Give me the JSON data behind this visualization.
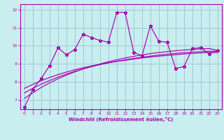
{
  "title": "",
  "xlabel": "Windchill (Refroidissement éolien,°C)",
  "background_color": "#c8eef0",
  "plot_bg_color": "#c8eef0",
  "grid_color": "#a0c8d8",
  "line_color": "#aa00aa",
  "xlim": [
    -0.5,
    23.5
  ],
  "ylim": [
    6.5,
    12.3
  ],
  "xticks": [
    0,
    1,
    2,
    3,
    4,
    5,
    6,
    7,
    8,
    9,
    10,
    11,
    12,
    13,
    14,
    15,
    16,
    17,
    18,
    19,
    20,
    21,
    22,
    23
  ],
  "yticks": [
    7,
    8,
    9,
    10,
    11,
    12
  ],
  "x_data": [
    0,
    1,
    2,
    3,
    4,
    5,
    6,
    7,
    8,
    9,
    10,
    11,
    12,
    13,
    14,
    15,
    16,
    17,
    18,
    19,
    20,
    21,
    22,
    23
  ],
  "y_main": [
    6.6,
    7.6,
    8.2,
    8.9,
    9.9,
    9.5,
    9.8,
    10.65,
    10.45,
    10.3,
    10.2,
    11.85,
    11.85,
    9.65,
    9.45,
    11.1,
    10.25,
    10.2,
    8.75,
    8.85,
    9.85,
    9.9,
    9.55,
    9.75
  ],
  "y_smooth1": [
    7.1,
    7.4,
    7.7,
    7.95,
    8.18,
    8.38,
    8.56,
    8.72,
    8.87,
    9.0,
    9.12,
    9.23,
    9.33,
    9.42,
    9.5,
    9.57,
    9.63,
    9.68,
    9.73,
    9.77,
    9.8,
    9.83,
    9.85,
    9.75
  ],
  "y_smooth2": [
    7.4,
    7.65,
    7.88,
    8.08,
    8.27,
    8.44,
    8.59,
    8.73,
    8.85,
    8.96,
    9.06,
    9.15,
    9.23,
    9.3,
    9.37,
    9.43,
    9.49,
    9.54,
    9.58,
    9.62,
    9.65,
    9.68,
    9.7,
    9.7
  ],
  "y_smooth3": [
    7.65,
    7.87,
    8.07,
    8.25,
    8.41,
    8.55,
    8.68,
    8.79,
    8.89,
    8.98,
    9.06,
    9.14,
    9.2,
    9.27,
    9.33,
    9.38,
    9.43,
    9.47,
    9.51,
    9.55,
    9.58,
    9.61,
    9.63,
    9.63
  ]
}
